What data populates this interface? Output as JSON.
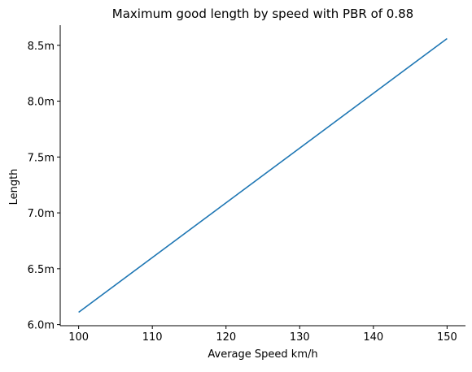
{
  "chart_data": {
    "type": "line",
    "title": "Maximum good length by speed with PBR of 0.88",
    "xlabel": "Average Speed km/h",
    "ylabel": "Length",
    "xlim": [
      97.5,
      152.5
    ],
    "ylim": [
      5.99,
      8.68
    ],
    "x_ticks": [
      100,
      110,
      120,
      130,
      140,
      150
    ],
    "x_tick_labels": [
      "100",
      "110",
      "120",
      "130",
      "140",
      "150"
    ],
    "y_ticks": [
      6.0,
      6.5,
      7.0,
      7.5,
      8.0,
      8.5
    ],
    "y_tick_labels": [
      "6.0m",
      "6.5m",
      "7.0m",
      "7.5m",
      "8.0m",
      "8.5m"
    ],
    "grid": false,
    "series": [
      {
        "color": "#1f77b4",
        "x": [
          100,
          150
        ],
        "y": [
          6.11,
          8.56
        ]
      }
    ]
  }
}
